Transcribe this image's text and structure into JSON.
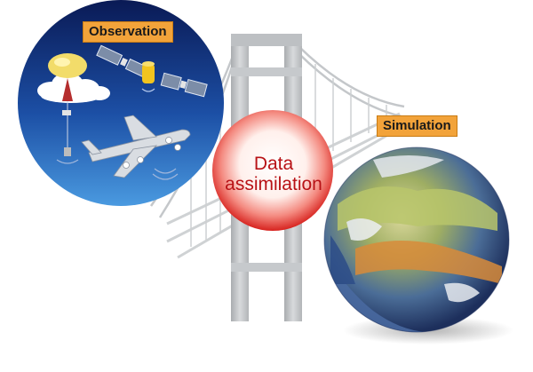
{
  "diagram": {
    "observation_label": "Observation",
    "simulation_label": "Simulation",
    "assimilation_line1": "Data",
    "assimilation_line2": "assimilation"
  },
  "colors": {
    "tag_fill": "#f2a33a",
    "assimilation_text": "#b81216",
    "sky_top": "#0a1a55",
    "sky_bottom": "#3f8fd8",
    "bridge_gray": "#c3c6c9"
  },
  "icons": [
    "balloon-icon",
    "satellite-icon",
    "airplane-icon",
    "earth-globe-icon",
    "bridge-icon"
  ]
}
